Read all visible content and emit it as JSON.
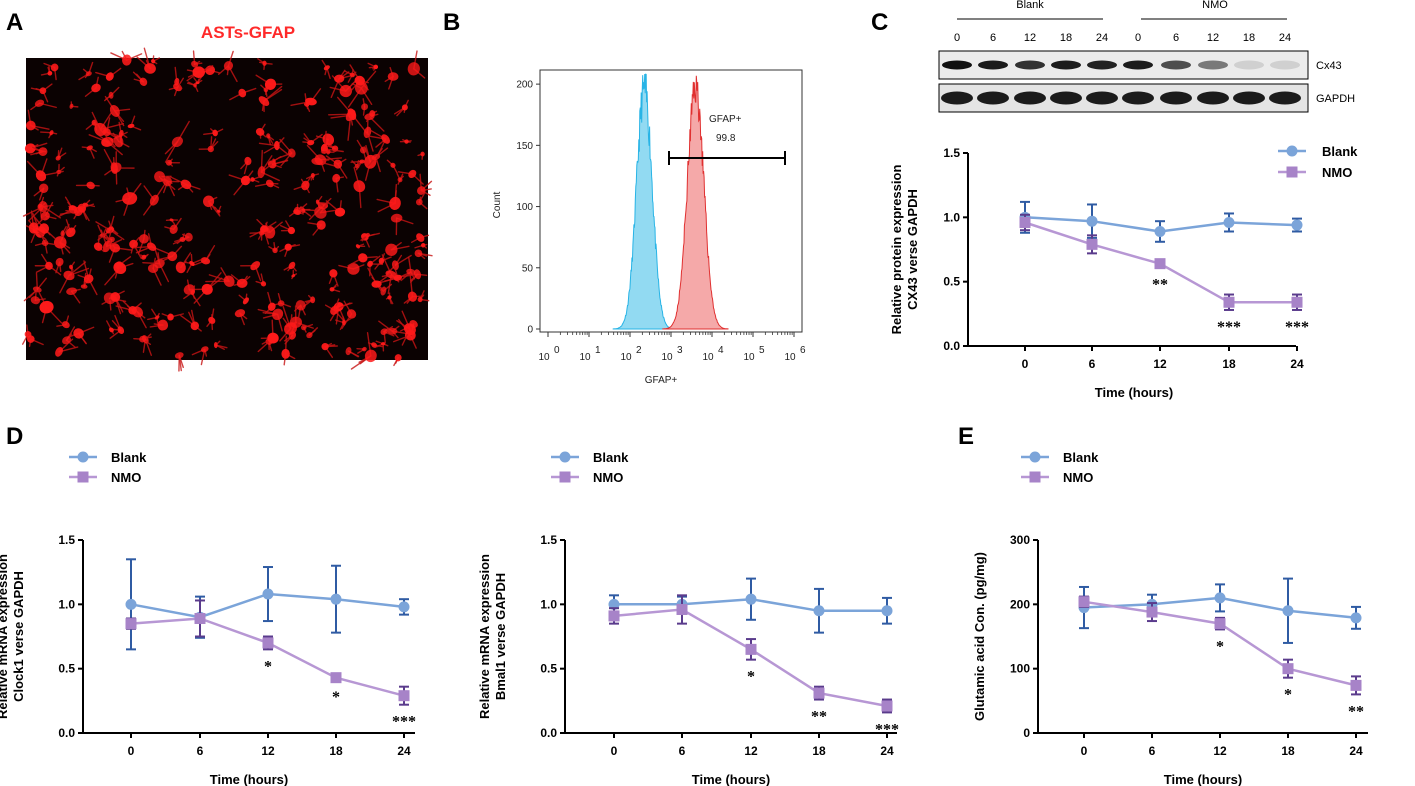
{
  "colors": {
    "blank_line": "#7BA4D9",
    "blank_marker": "#7BA4D9",
    "blank_err": "#2F5BA3",
    "nmo_line": "#B797D4",
    "nmo_marker": "#A783C8",
    "nmo_err": "#5A3B8C",
    "fluor": "#FF1A1A",
    "flow_blue": "#7FD3F0",
    "flow_blue_edge": "#28B4E6",
    "flow_red": "#F4A0A0",
    "flow_red_edge": "#E03030"
  },
  "panels": {
    "a": {
      "letter": "A",
      "title": "ASTs-GFAP"
    },
    "b": {
      "letter": "B"
    },
    "c": {
      "letter": "C"
    },
    "d": {
      "letter": "D"
    },
    "e": {
      "letter": "E"
    }
  },
  "flow": {
    "ylabel": "Count",
    "xlabel": "GFAP+",
    "yticks": [
      "0",
      "50",
      "100",
      "150",
      "200"
    ],
    "xticks": [
      "10",
      "10",
      "10",
      "10",
      "10",
      "10",
      "10"
    ],
    "xexp": [
      "0",
      "1",
      "2",
      "3",
      "4",
      "5",
      "6"
    ],
    "gate_label": "GFAP+",
    "gate_value": "99.8"
  },
  "blot": {
    "groups": [
      "Blank",
      "NMO"
    ],
    "lanes": [
      "0",
      "6",
      "12",
      "18",
      "24",
      "0",
      "6",
      "12",
      "18",
      "24"
    ],
    "proteins": [
      "Cx43",
      "GAPDH"
    ]
  },
  "chart_data": [
    {
      "id": "c",
      "type": "line",
      "title": "",
      "ylabel": [
        "Relative protein expression",
        "CX43 verse GAPDH"
      ],
      "xlabel": "Time (hours)",
      "categories": [
        "0",
        "6",
        "12",
        "18",
        "24"
      ],
      "ylim": [
        0,
        1.5
      ],
      "yticks": [
        "0.0",
        "0.5",
        "1.0",
        "1.5"
      ],
      "series": [
        {
          "name": "Blank",
          "values": [
            1.0,
            0.97,
            0.89,
            0.96,
            0.94
          ],
          "err": [
            0.12,
            0.13,
            0.08,
            0.07,
            0.05
          ]
        },
        {
          "name": "NMO",
          "values": [
            0.96,
            0.79,
            0.64,
            0.34,
            0.34
          ],
          "err": [
            0.06,
            0.07,
            0.03,
            0.06,
            0.06
          ]
        }
      ],
      "annotations": [
        "",
        "",
        "**",
        "***",
        "***"
      ]
    },
    {
      "id": "d1",
      "type": "line",
      "title": "",
      "ylabel": [
        "Relative mRNA expression",
        "Clock1 verse GAPDH"
      ],
      "xlabel": "Time (hours)",
      "categories": [
        "0",
        "6",
        "12",
        "18",
        "24"
      ],
      "ylim": [
        0,
        1.5
      ],
      "yticks": [
        "0.0",
        "0.5",
        "1.0",
        "1.5"
      ],
      "series": [
        {
          "name": "Blank",
          "values": [
            1.0,
            0.9,
            1.08,
            1.04,
            0.98
          ],
          "err": [
            0.35,
            0.16,
            0.21,
            0.26,
            0.06
          ]
        },
        {
          "name": "NMO",
          "values": [
            0.85,
            0.89,
            0.7,
            0.43,
            0.29
          ],
          "err": [
            0.04,
            0.14,
            0.05,
            0.02,
            0.07
          ]
        }
      ],
      "annotations": [
        "",
        "",
        "*",
        "*",
        "***"
      ]
    },
    {
      "id": "d2",
      "type": "line",
      "title": "",
      "ylabel": [
        "Relative mRNA expression",
        "Bmal1 verse GAPDH"
      ],
      "xlabel": "Time (hours)",
      "categories": [
        "0",
        "6",
        "12",
        "18",
        "24"
      ],
      "ylim": [
        0,
        1.5
      ],
      "yticks": [
        "0.0",
        "0.5",
        "1.0",
        "1.5"
      ],
      "series": [
        {
          "name": "Blank",
          "values": [
            1.0,
            1.0,
            1.04,
            0.95,
            0.95
          ],
          "err": [
            0.07,
            0.06,
            0.16,
            0.17,
            0.1
          ]
        },
        {
          "name": "NMO",
          "values": [
            0.91,
            0.96,
            0.65,
            0.31,
            0.21
          ],
          "err": [
            0.06,
            0.11,
            0.08,
            0.05,
            0.05
          ]
        }
      ],
      "annotations": [
        "",
        "",
        "*",
        "**",
        "***"
      ]
    },
    {
      "id": "e",
      "type": "line",
      "title": "",
      "ylabel": [
        "Glutamic acid Con. (pg/mg)"
      ],
      "xlabel": "Time (hours)",
      "categories": [
        "0",
        "6",
        "12",
        "18",
        "24"
      ],
      "ylim": [
        0,
        300
      ],
      "yticks": [
        "0",
        "100",
        "200",
        "300"
      ],
      "series": [
        {
          "name": "Blank",
          "values": [
            195,
            200,
            210,
            190,
            179
          ],
          "err": [
            32,
            15,
            21,
            50,
            17
          ]
        },
        {
          "name": "NMO",
          "values": [
            204,
            188,
            170,
            100,
            74
          ],
          "err": [
            8,
            14,
            9,
            14,
            14
          ]
        }
      ],
      "annotations": [
        "",
        "",
        "*",
        "*",
        "**"
      ]
    }
  ]
}
